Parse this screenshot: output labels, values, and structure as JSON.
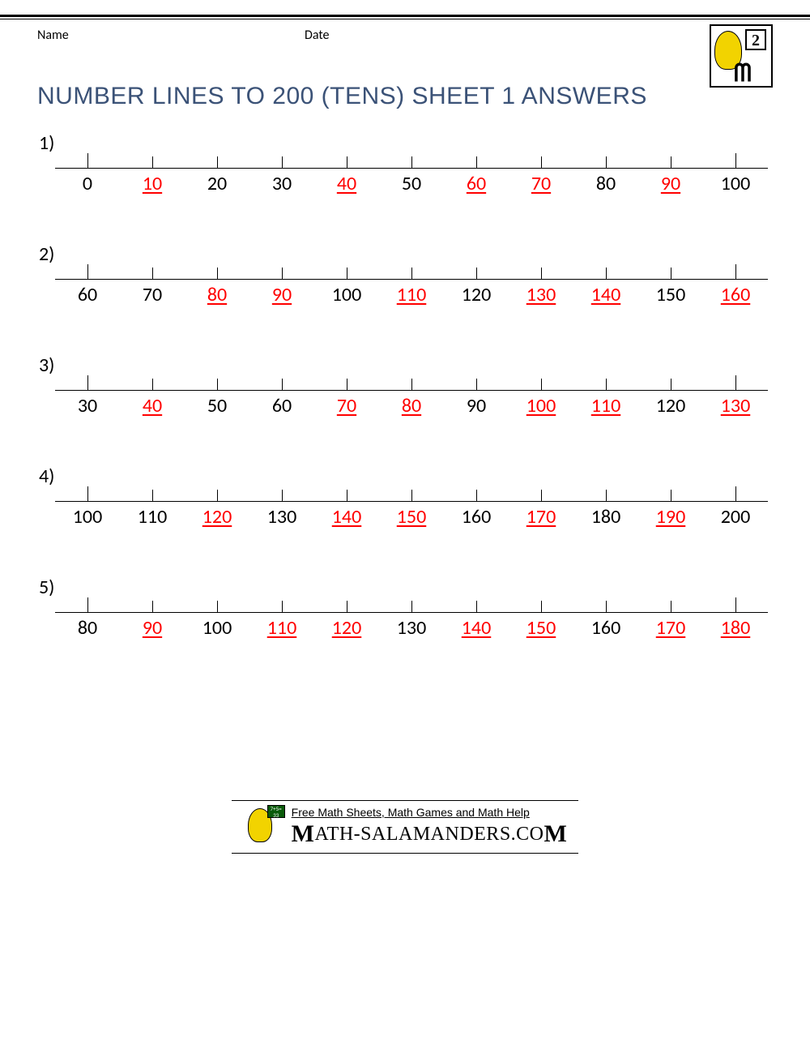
{
  "header": {
    "name_label": "Name",
    "date_label": "Date",
    "logo_grade": "2"
  },
  "title": "NUMBER LINES TO 200 (TENS) SHEET 1 ANSWERS",
  "colors": {
    "title": "#3b5277",
    "answer": "#ff0000",
    "given": "#000000",
    "line": "#000000",
    "background": "#ffffff"
  },
  "typography": {
    "title_fontsize": 30,
    "label_fontsize": 24,
    "header_fontsize": 16,
    "footer_small_fontsize": 14,
    "footer_brand_fontsize": 24
  },
  "problems": [
    {
      "num": "1)",
      "values": [
        {
          "v": "0",
          "a": false
        },
        {
          "v": "10",
          "a": true
        },
        {
          "v": "20",
          "a": false
        },
        {
          "v": "30",
          "a": false
        },
        {
          "v": "40",
          "a": true
        },
        {
          "v": "50",
          "a": false
        },
        {
          "v": "60",
          "a": true
        },
        {
          "v": "70",
          "a": true
        },
        {
          "v": "80",
          "a": false
        },
        {
          "v": "90",
          "a": true
        },
        {
          "v": "100",
          "a": false
        }
      ]
    },
    {
      "num": "2)",
      "values": [
        {
          "v": "60",
          "a": false
        },
        {
          "v": "70",
          "a": false
        },
        {
          "v": "80",
          "a": true
        },
        {
          "v": "90",
          "a": true
        },
        {
          "v": "100",
          "a": false
        },
        {
          "v": "110",
          "a": true
        },
        {
          "v": "120",
          "a": false
        },
        {
          "v": "130",
          "a": true
        },
        {
          "v": "140",
          "a": true
        },
        {
          "v": "150",
          "a": false
        },
        {
          "v": "160",
          "a": true
        }
      ]
    },
    {
      "num": "3)",
      "values": [
        {
          "v": "30",
          "a": false
        },
        {
          "v": "40",
          "a": true
        },
        {
          "v": "50",
          "a": false
        },
        {
          "v": "60",
          "a": false
        },
        {
          "v": "70",
          "a": true
        },
        {
          "v": "80",
          "a": true
        },
        {
          "v": "90",
          "a": false
        },
        {
          "v": "100",
          "a": true
        },
        {
          "v": "110",
          "a": true
        },
        {
          "v": "120",
          "a": false
        },
        {
          "v": "130",
          "a": true
        }
      ]
    },
    {
      "num": "4)",
      "values": [
        {
          "v": "100",
          "a": false
        },
        {
          "v": "110",
          "a": false
        },
        {
          "v": "120",
          "a": true
        },
        {
          "v": "130",
          "a": false
        },
        {
          "v": "140",
          "a": true
        },
        {
          "v": "150",
          "a": true
        },
        {
          "v": "160",
          "a": false
        },
        {
          "v": "170",
          "a": true
        },
        {
          "v": "180",
          "a": false
        },
        {
          "v": "190",
          "a": true
        },
        {
          "v": "200",
          "a": false
        }
      ]
    },
    {
      "num": "5)",
      "values": [
        {
          "v": "80",
          "a": false
        },
        {
          "v": "90",
          "a": true
        },
        {
          "v": "100",
          "a": false
        },
        {
          "v": "110",
          "a": true
        },
        {
          "v": "120",
          "a": true
        },
        {
          "v": "130",
          "a": false
        },
        {
          "v": "140",
          "a": true
        },
        {
          "v": "150",
          "a": true
        },
        {
          "v": "160",
          "a": false
        },
        {
          "v": "170",
          "a": true
        },
        {
          "v": "180",
          "a": true
        }
      ]
    }
  ],
  "footer": {
    "line1": "Free Math Sheets, Math Games and Math Help",
    "brand_text": "ATH-SALAMANDERS.CO",
    "brand_prefix": "M",
    "brand_suffix": "M",
    "board_text": "7+5= 33"
  }
}
